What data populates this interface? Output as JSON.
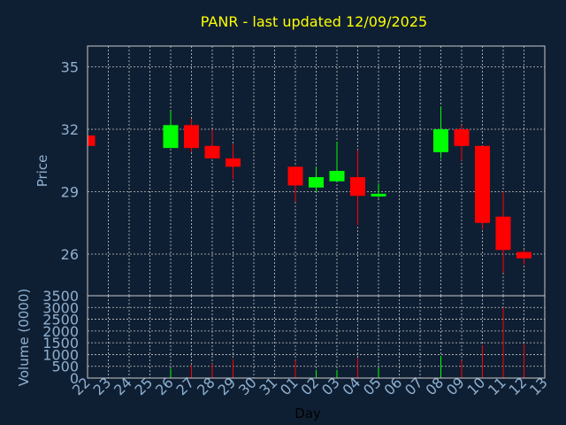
{
  "chart_data": {
    "type": "candlestick",
    "title": "PANR - last updated 12/09/2025",
    "xlabel": "Day",
    "price_panel": {
      "ylabel": "Price",
      "ylim": [
        24.0,
        36.0
      ],
      "yticks": [
        26,
        29,
        32,
        35
      ],
      "grid": true
    },
    "volume_panel": {
      "ylabel": "Volume (0000)",
      "ylim": [
        0,
        3500
      ],
      "yticks": [
        0,
        500,
        1000,
        1500,
        2000,
        2500,
        3000,
        3500
      ],
      "grid": true
    },
    "x_ticks": [
      "22",
      "23",
      "24",
      "25",
      "26",
      "27",
      "28",
      "29",
      "30",
      "31",
      "01",
      "02",
      "03",
      "04",
      "05",
      "06",
      "07",
      "08",
      "09",
      "10",
      "11",
      "12",
      "13"
    ],
    "colors": {
      "up": "#00ff00",
      "down": "#ff0000",
      "background": "#0f1f33"
    },
    "candles": [
      {
        "day": "22",
        "open": 31.7,
        "high": 31.7,
        "low": 31.2,
        "close": 31.2,
        "volume": 0
      },
      {
        "day": "26",
        "open": 31.1,
        "high": 32.9,
        "low": 31.1,
        "close": 32.2,
        "volume": 400
      },
      {
        "day": "27",
        "open": 32.2,
        "high": 32.5,
        "low": 30.9,
        "close": 31.1,
        "volume": 550
      },
      {
        "day": "28",
        "open": 31.2,
        "high": 32.0,
        "low": 30.6,
        "close": 30.6,
        "volume": 600
      },
      {
        "day": "29",
        "open": 30.6,
        "high": 31.3,
        "low": 29.6,
        "close": 30.2,
        "volume": 800
      },
      {
        "day": "01",
        "open": 30.2,
        "high": 30.2,
        "low": 28.5,
        "close": 29.3,
        "volume": 750
      },
      {
        "day": "02",
        "open": 29.2,
        "high": 30.2,
        "low": 29.0,
        "close": 29.7,
        "volume": 350
      },
      {
        "day": "03",
        "open": 29.5,
        "high": 31.4,
        "low": 29.5,
        "close": 30.0,
        "volume": 350
      },
      {
        "day": "04",
        "open": 29.7,
        "high": 31.0,
        "low": 27.4,
        "close": 28.8,
        "volume": 850
      },
      {
        "day": "05",
        "open": 28.8,
        "high": 29.4,
        "low": 28.7,
        "close": 28.9,
        "volume": 450
      },
      {
        "day": "08",
        "open": 30.9,
        "high": 33.1,
        "low": 30.6,
        "close": 32.0,
        "volume": 950
      },
      {
        "day": "09",
        "open": 32.0,
        "high": 32.2,
        "low": 30.5,
        "close": 31.2,
        "volume": 750
      },
      {
        "day": "10",
        "open": 31.2,
        "high": 31.2,
        "low": 27.2,
        "close": 27.5,
        "volume": 1400
      },
      {
        "day": "11",
        "open": 27.8,
        "high": 29.0,
        "low": 25.1,
        "close": 26.2,
        "volume": 3000
      },
      {
        "day": "12",
        "open": 26.1,
        "high": 26.2,
        "low": 25.5,
        "close": 25.8,
        "volume": 1450
      }
    ]
  }
}
